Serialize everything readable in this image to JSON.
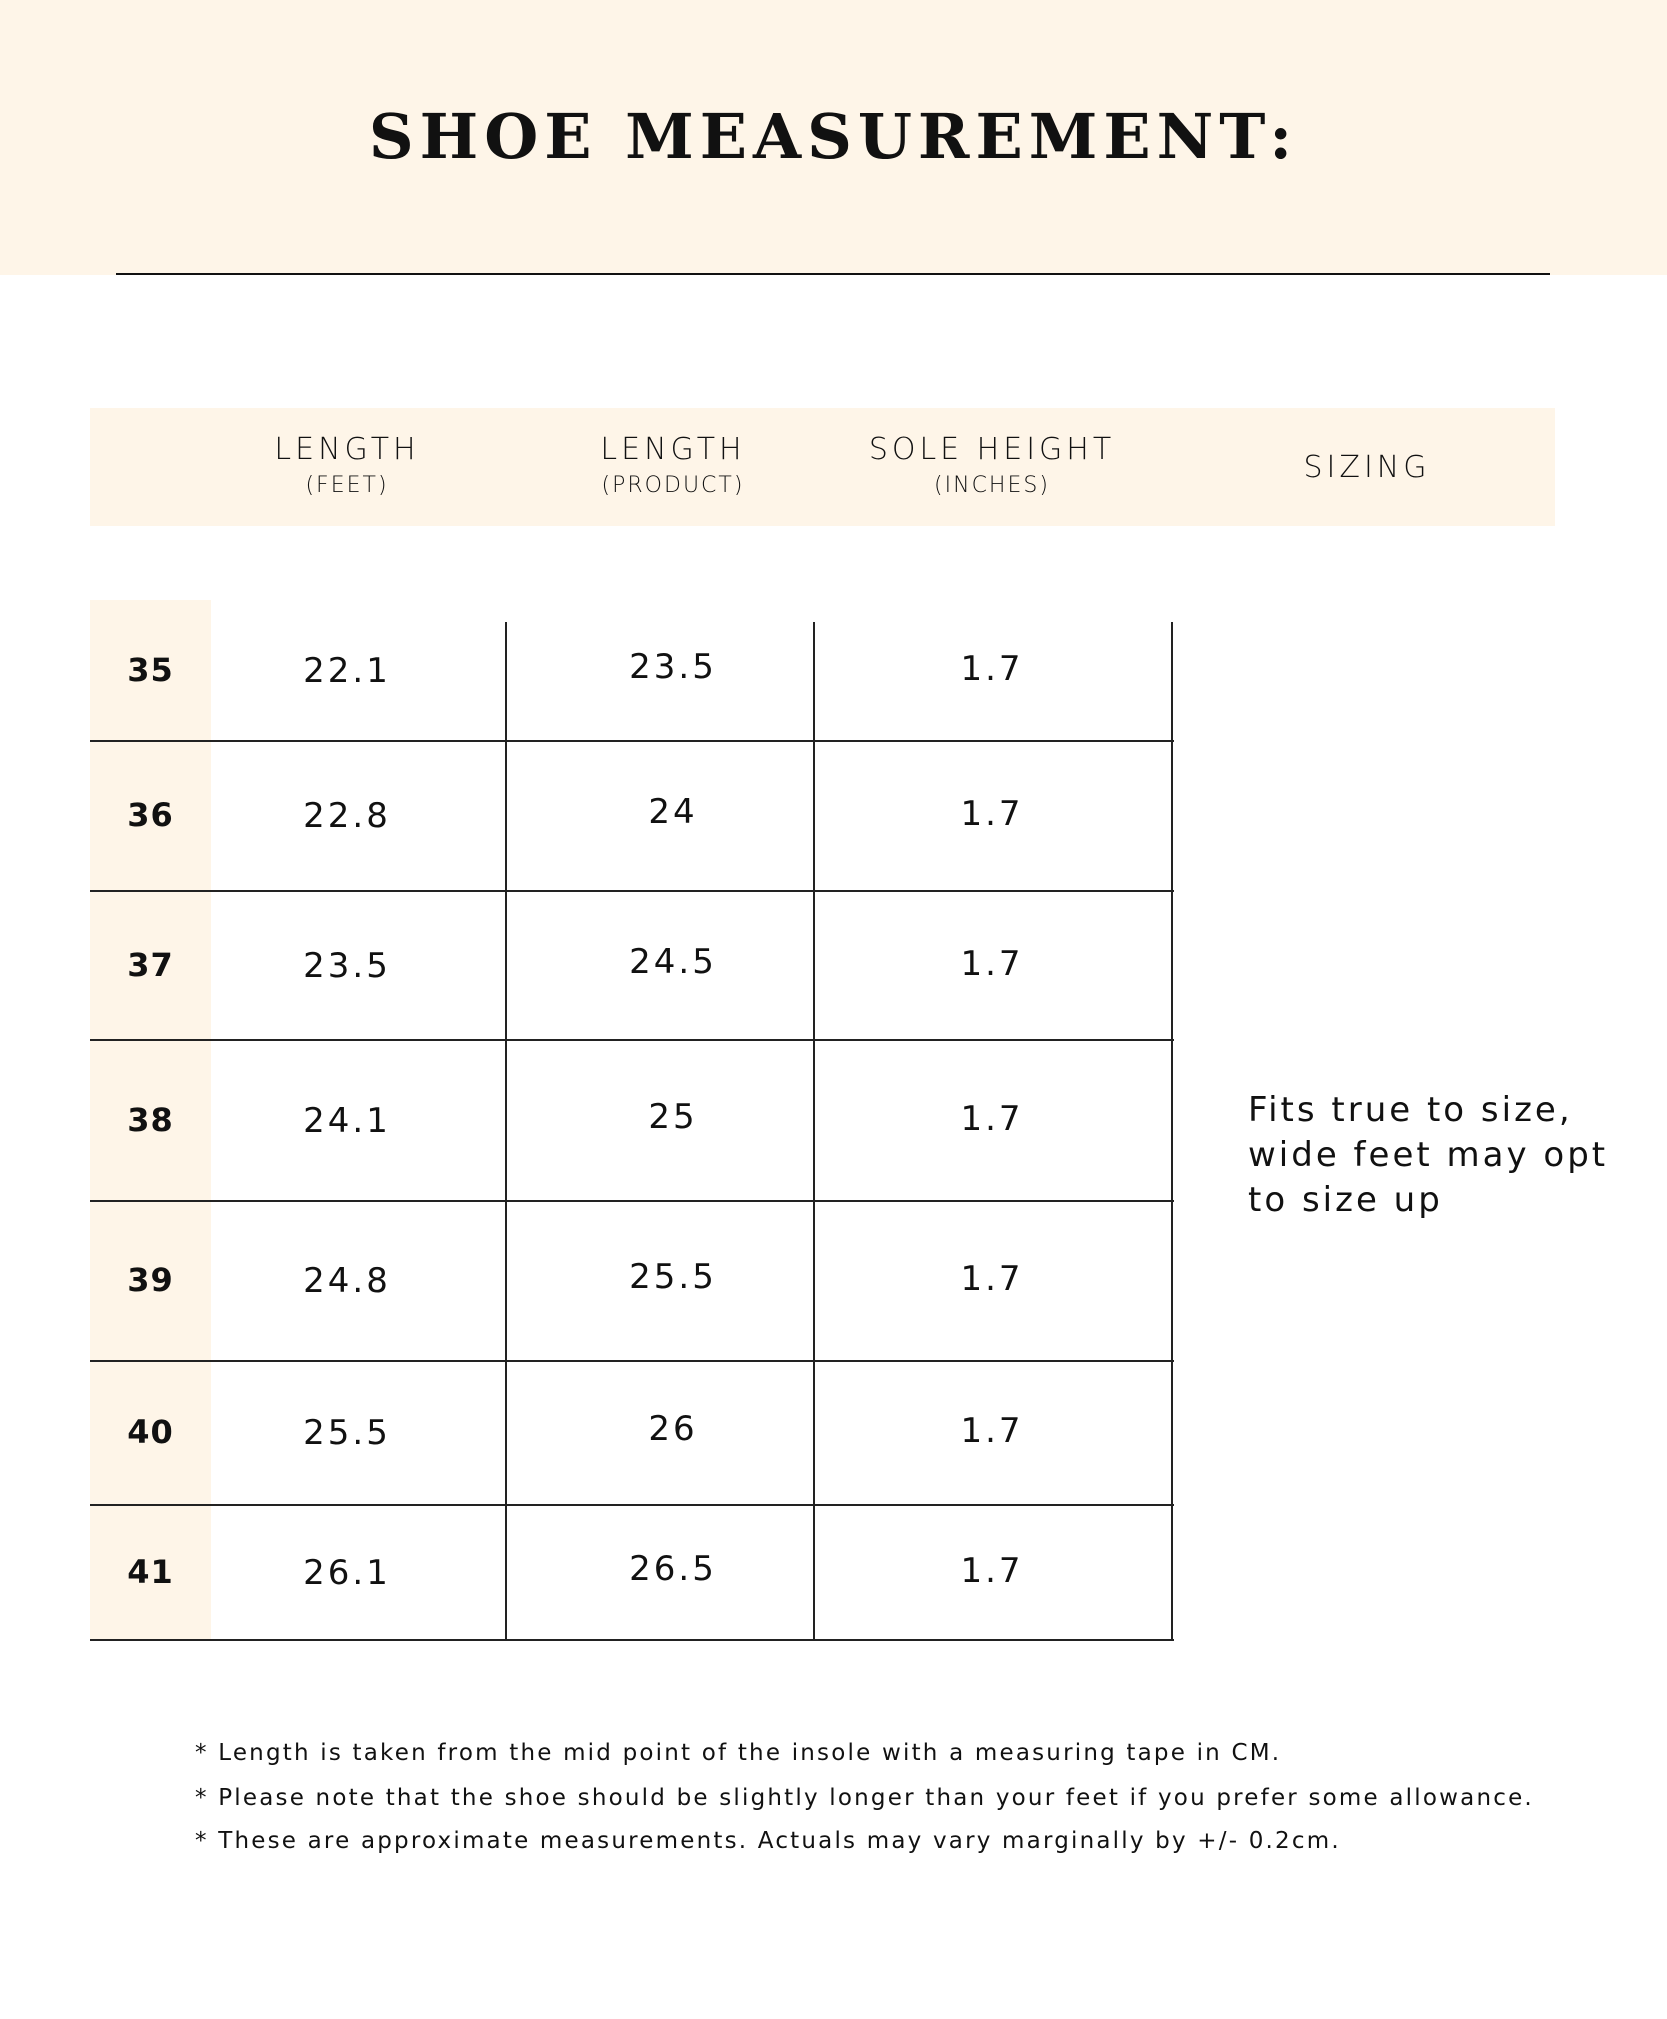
{
  "title": "SHOE MEASUREMENT:",
  "colors": {
    "band": "#fef5e8",
    "text": "#111111"
  },
  "headers": [
    {
      "label": "LENGTH",
      "sub": "(FEET)"
    },
    {
      "label": "LENGTH",
      "sub": "(PRODUCT)"
    },
    {
      "label": "SOLE HEIGHT",
      "sub": "(INCHES)"
    },
    {
      "label": "SIZING",
      "sub": ""
    }
  ],
  "rows": [
    {
      "size": "35",
      "feet": "22.1",
      "product": "23.5",
      "sole": "1.7"
    },
    {
      "size": "36",
      "feet": "22.8",
      "product": "24",
      "sole": "1.7"
    },
    {
      "size": "37",
      "feet": "23.5",
      "product": "24.5",
      "sole": "1.7"
    },
    {
      "size": "38",
      "feet": "24.1",
      "product": "25",
      "sole": "1.7"
    },
    {
      "size": "39",
      "feet": "24.8",
      "product": "25.5",
      "sole": "1.7"
    },
    {
      "size": "40",
      "feet": "25.5",
      "product": "26",
      "sole": "1.7"
    },
    {
      "size": "41",
      "feet": "26.1",
      "product": "26.5",
      "sole": "1.7"
    }
  ],
  "sizing": "Fits true to size, wide feet may opt to size up",
  "notes": [
    "* Length is taken from the mid point of the insole with a measuring tape in CM.",
    "* Please note that the shoe should be slightly longer than your feet if you prefer some allowance.",
    "* These are approximate measurements. Actuals may vary marginally by +/- 0.2cm."
  ]
}
